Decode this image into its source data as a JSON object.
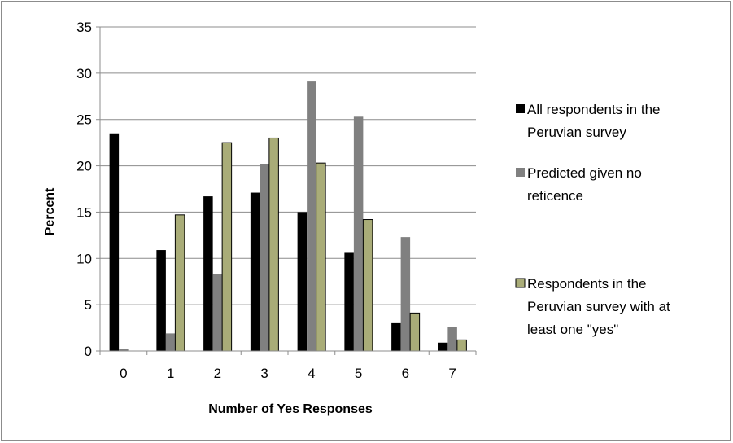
{
  "chart_data": {
    "type": "bar",
    "categories": [
      "0",
      "1",
      "2",
      "3",
      "4",
      "5",
      "6",
      "7"
    ],
    "series": [
      {
        "name": "All respondents in the Peruvian survey",
        "color": "#000000",
        "values": [
          23.5,
          10.9,
          16.7,
          17.1,
          15.0,
          10.6,
          3.0,
          0.9
        ]
      },
      {
        "name": "Predicted given no reticence",
        "color": "#808080",
        "values": [
          0.2,
          1.9,
          8.3,
          20.2,
          29.1,
          25.3,
          12.3,
          2.6
        ]
      },
      {
        "name": "Respondents in the Peruvian survey with at least one \"yes\"",
        "color": "#a9ac78",
        "values": [
          0,
          14.7,
          22.5,
          23.0,
          20.3,
          14.2,
          4.1,
          1.2
        ]
      }
    ],
    "title": "",
    "xlabel": "Number of Yes Responses",
    "ylabel": "Percent",
    "ylim": [
      0,
      35
    ],
    "yticks": [
      0,
      5,
      10,
      15,
      20,
      25,
      30,
      35
    ],
    "grid": true,
    "legend": "right"
  }
}
